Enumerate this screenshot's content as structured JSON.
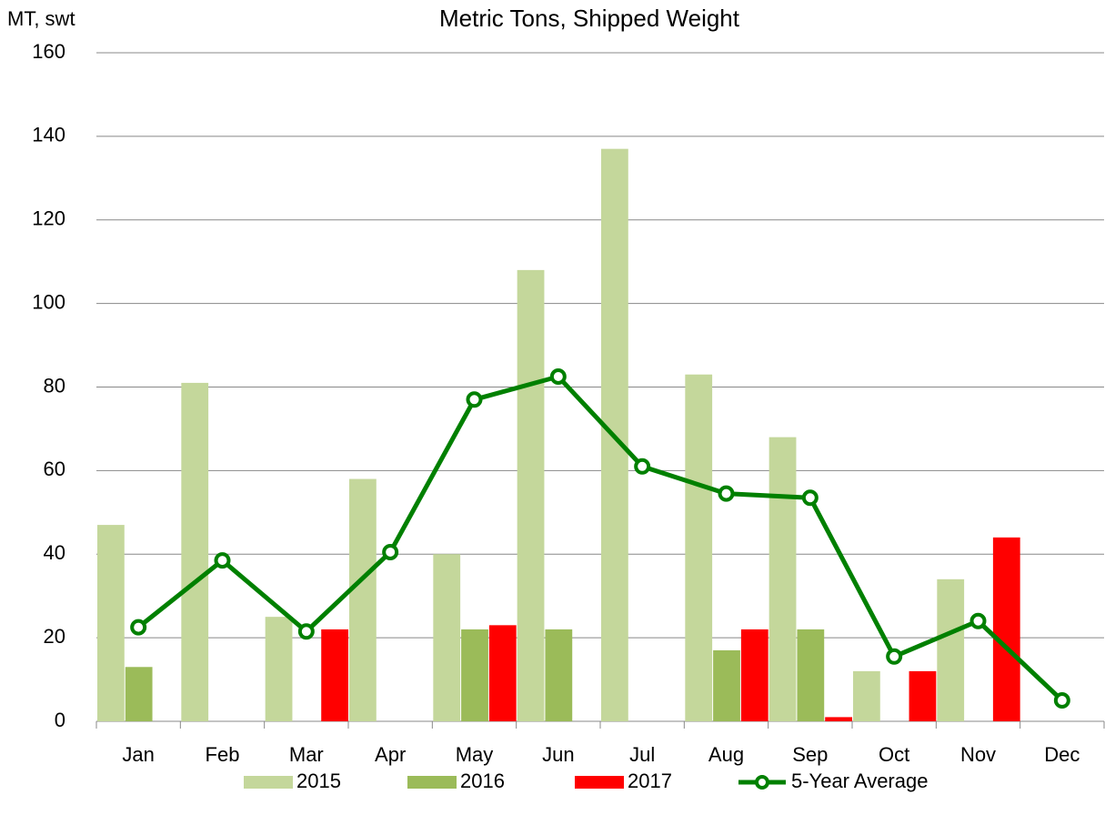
{
  "chart_data": {
    "type": "bar",
    "title": "Metric Tons, Shipped Weight",
    "y_label": "MT, swt",
    "categories": [
      "Jan",
      "Feb",
      "Mar",
      "Apr",
      "May",
      "Jun",
      "Jul",
      "Aug",
      "Sep",
      "Oct",
      "Nov",
      "Dec"
    ],
    "series": [
      {
        "name": "2015",
        "color": "#c4d79b",
        "values": [
          47,
          81,
          25,
          58,
          40,
          108,
          137,
          83,
          68,
          12,
          34,
          null
        ]
      },
      {
        "name": "2016",
        "color": "#9bbb59",
        "values": [
          13,
          null,
          null,
          null,
          22,
          22,
          null,
          17,
          22,
          null,
          null,
          null
        ]
      },
      {
        "name": "2017",
        "color": "#ff0000",
        "values": [
          null,
          null,
          22,
          null,
          23,
          null,
          null,
          22,
          1,
          12,
          44,
          null
        ]
      },
      {
        "name": "5-Year Average",
        "type": "line",
        "color": "#008000",
        "values": [
          22.5,
          38.5,
          21.5,
          40.5,
          77,
          82.5,
          61,
          54.5,
          53.5,
          15.5,
          24,
          5
        ]
      }
    ],
    "ylim": [
      0,
      160
    ],
    "yticks": [
      0,
      20,
      40,
      60,
      80,
      100,
      120,
      140,
      160
    ],
    "grid": true,
    "legend": "bottom"
  }
}
